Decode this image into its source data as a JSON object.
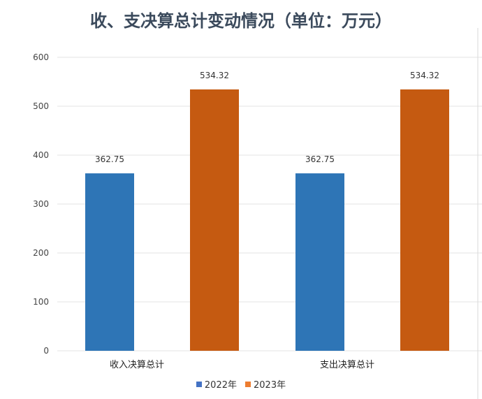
{
  "chart_data": {
    "type": "bar",
    "title": "收、支决算总计变动情况（单位：万元）",
    "categories": [
      "收入决算总计",
      "支出决算总计"
    ],
    "series": [
      {
        "name": "2022年",
        "values": [
          362.75,
          362.75
        ],
        "color": "#2e75b6"
      },
      {
        "name": "2023年",
        "values": [
          534.32,
          534.32
        ],
        "color": "#c55a11"
      }
    ],
    "ylim": [
      0,
      600
    ],
    "yticks": [
      0,
      100,
      200,
      300,
      400,
      500,
      600
    ],
    "grid": true,
    "legend_position": "bottom"
  }
}
